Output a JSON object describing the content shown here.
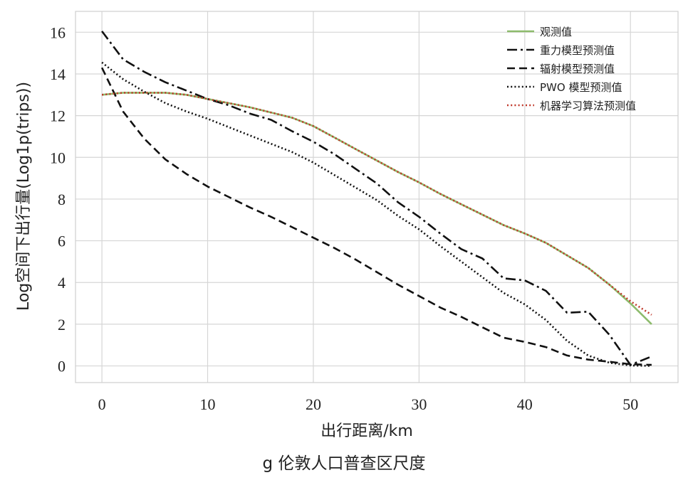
{
  "chart_data": {
    "type": "line",
    "xlabel": "出行距离/km",
    "ylabel": "Log空间下出行量(Log1p(trips))",
    "caption": "g 伦敦人口普查区尺度",
    "xlim": [
      -2.5,
      54.5
    ],
    "ylim": [
      -0.8,
      17.0
    ],
    "xticks": [
      0,
      10,
      20,
      30,
      40,
      50
    ],
    "yticks": [
      0,
      2,
      4,
      6,
      8,
      10,
      12,
      14,
      16
    ],
    "grid": true,
    "legend": "top-right",
    "series": [
      {
        "name": "观测值",
        "color": "#8dbb6c",
        "dash": "solid",
        "x": [
          0,
          2,
          4,
          6,
          8,
          10,
          12,
          14,
          16,
          18,
          20,
          22,
          24,
          26,
          28,
          30,
          32,
          34,
          36,
          38,
          40,
          42,
          44,
          46,
          48,
          50,
          52
        ],
        "y": [
          13.0,
          13.1,
          13.1,
          13.1,
          13.0,
          12.8,
          12.6,
          12.4,
          12.15,
          11.9,
          11.5,
          10.95,
          10.4,
          9.85,
          9.3,
          8.8,
          8.25,
          7.75,
          7.25,
          6.75,
          6.35,
          5.9,
          5.3,
          4.7,
          3.9,
          3.0,
          2.0
        ]
      },
      {
        "name": "重力模型预测值",
        "color": "#111111",
        "dash": "dashdot",
        "x": [
          0,
          2,
          4,
          6,
          8,
          10,
          12,
          14,
          16,
          18,
          20,
          22,
          24,
          26,
          28,
          30,
          32,
          34,
          36,
          38,
          40,
          42,
          44,
          46,
          48,
          50,
          52
        ],
        "y": [
          16.05,
          14.7,
          14.1,
          13.6,
          13.2,
          12.8,
          12.5,
          12.1,
          11.8,
          11.25,
          10.75,
          10.15,
          9.45,
          8.75,
          7.85,
          7.15,
          6.35,
          5.6,
          5.15,
          4.2,
          4.1,
          3.6,
          2.55,
          2.6,
          1.5,
          0.05,
          0.45
        ]
      },
      {
        "name": "辐射模型预测值",
        "color": "#111111",
        "dash": "dashed",
        "x": [
          0,
          2,
          4,
          6,
          8,
          10,
          12,
          14,
          16,
          18,
          20,
          22,
          24,
          26,
          28,
          30,
          32,
          34,
          36,
          38,
          40,
          42,
          44,
          46,
          48,
          50,
          52
        ],
        "y": [
          14.3,
          12.2,
          10.9,
          9.9,
          9.2,
          8.6,
          8.1,
          7.6,
          7.15,
          6.65,
          6.15,
          5.65,
          5.1,
          4.5,
          3.9,
          3.35,
          2.8,
          2.35,
          1.85,
          1.35,
          1.15,
          0.9,
          0.5,
          0.3,
          0.2,
          0.08,
          0.05
        ]
      },
      {
        "name": "PWO 模型预测值",
        "color": "#111111",
        "dash": "dotted",
        "x": [
          0,
          2,
          4,
          6,
          8,
          10,
          12,
          14,
          16,
          18,
          20,
          22,
          24,
          26,
          28,
          30,
          32,
          34,
          36,
          38,
          40,
          42,
          44,
          46,
          48,
          50,
          52
        ],
        "y": [
          14.55,
          13.75,
          13.15,
          12.6,
          12.2,
          11.85,
          11.45,
          11.05,
          10.65,
          10.25,
          9.75,
          9.15,
          8.55,
          7.95,
          7.2,
          6.55,
          5.75,
          5.0,
          4.25,
          3.5,
          2.95,
          2.2,
          1.2,
          0.5,
          0.15,
          0.02,
          0.0
        ]
      },
      {
        "name": "机器学习算法预测值",
        "color": "#c0392b",
        "dash": "dotted",
        "x": [
          0,
          2,
          4,
          6,
          8,
          10,
          12,
          14,
          16,
          18,
          20,
          22,
          24,
          26,
          28,
          30,
          32,
          34,
          36,
          38,
          40,
          42,
          44,
          46,
          48,
          50,
          52
        ],
        "y": [
          13.0,
          13.1,
          13.1,
          13.1,
          13.0,
          12.8,
          12.6,
          12.4,
          12.15,
          11.9,
          11.5,
          10.95,
          10.4,
          9.85,
          9.3,
          8.8,
          8.25,
          7.75,
          7.25,
          6.75,
          6.35,
          5.9,
          5.3,
          4.7,
          3.9,
          3.1,
          2.45
        ]
      }
    ]
  }
}
